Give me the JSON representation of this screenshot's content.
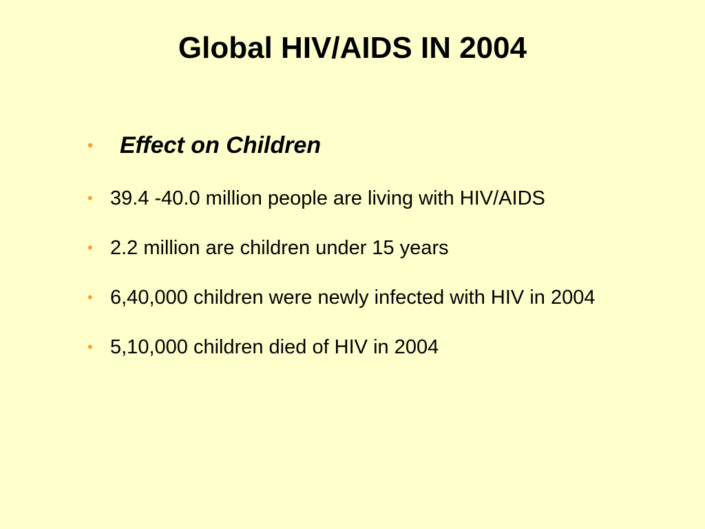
{
  "slide": {
    "title": "Global HIV/AIDS IN 2004",
    "bullet_symbol": "•",
    "bullet_color": "#ff9933",
    "background_color": "#ffffcc",
    "heading": "Effect on Children",
    "items": [
      "39.4 -40.0 million people are living with HIV/AIDS",
      "2.2 million are children under 15 years",
      "6,40,000 children were newly infected with HIV in 2004",
      "5,10,000 children died of HIV in 2004"
    ]
  }
}
